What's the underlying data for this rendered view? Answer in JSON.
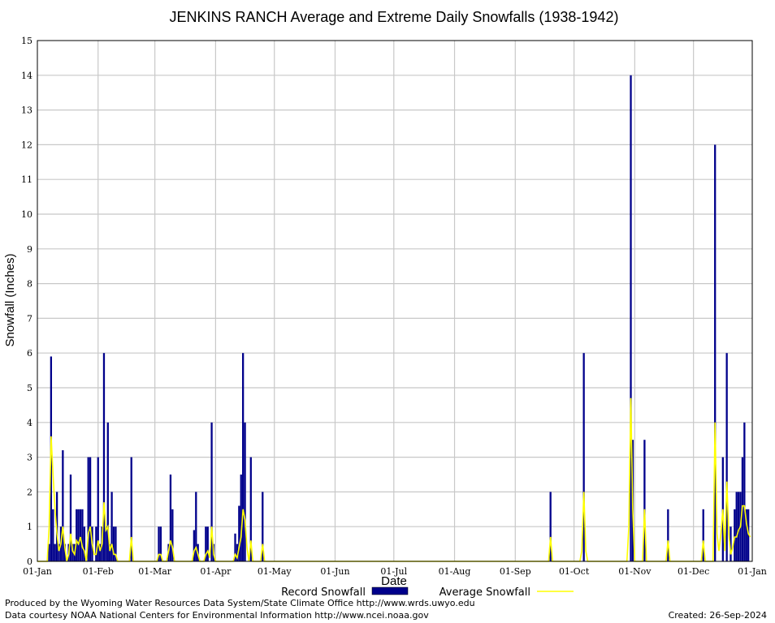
{
  "chart_data": {
    "type": "bar",
    "title": "JENKINS RANCH Average and Extreme Daily Snowfalls (1938-1942)",
    "xlabel": "Date",
    "ylabel": "Snowfall (Inches)",
    "ylim": [
      0,
      15
    ],
    "yticks": [
      0,
      1,
      2,
      3,
      4,
      5,
      6,
      7,
      8,
      9,
      10,
      11,
      12,
      13,
      14,
      15
    ],
    "xlim_day_of_year": [
      1,
      366
    ],
    "xticks": [
      {
        "label": "01-Jan",
        "day": 1
      },
      {
        "label": "01-Feb",
        "day": 32
      },
      {
        "label": "01-Mar",
        "day": 61
      },
      {
        "label": "01-Apr",
        "day": 92
      },
      {
        "label": "01-May",
        "day": 122
      },
      {
        "label": "01-Jun",
        "day": 153
      },
      {
        "label": "01-Jul",
        "day": 183
      },
      {
        "label": "01-Aug",
        "day": 214
      },
      {
        "label": "01-Sep",
        "day": 245
      },
      {
        "label": "01-Oct",
        "day": 275
      },
      {
        "label": "01-Nov",
        "day": 306
      },
      {
        "label": "01-Dec",
        "day": 336
      },
      {
        "label": "01-Jan",
        "day": 366
      }
    ],
    "grid": true,
    "legend_position": "bottom",
    "series": [
      {
        "name": "Record Snowfall",
        "style": "bars",
        "color": "#00008b",
        "points": [
          [
            7,
            0.5
          ],
          [
            8,
            5.9
          ],
          [
            9,
            1.5
          ],
          [
            10,
            0.5
          ],
          [
            11,
            2.0
          ],
          [
            12,
            0.5
          ],
          [
            13,
            1.0
          ],
          [
            14,
            3.2
          ],
          [
            15,
            0.5
          ],
          [
            17,
            0.5
          ],
          [
            18,
            2.5
          ],
          [
            19,
            0.5
          ],
          [
            20,
            0.5
          ],
          [
            21,
            1.5
          ],
          [
            22,
            1.5
          ],
          [
            23,
            1.5
          ],
          [
            24,
            1.5
          ],
          [
            25,
            1.0
          ],
          [
            27,
            3.0
          ],
          [
            28,
            3.0
          ],
          [
            29,
            1.0
          ],
          [
            31,
            1.0
          ],
          [
            32,
            3.0
          ],
          [
            33,
            0.5
          ],
          [
            34,
            1.0
          ],
          [
            35,
            6.0
          ],
          [
            36,
            1.0
          ],
          [
            37,
            4.0
          ],
          [
            38,
            0.5
          ],
          [
            39,
            2.0
          ],
          [
            40,
            1.0
          ],
          [
            41,
            1.0
          ],
          [
            49,
            3.0
          ],
          [
            63,
            1.0
          ],
          [
            64,
            1.0
          ],
          [
            68,
            0.5
          ],
          [
            69,
            2.5
          ],
          [
            70,
            1.5
          ],
          [
            81,
            0.9
          ],
          [
            82,
            2.0
          ],
          [
            83,
            0.5
          ],
          [
            87,
            1.0
          ],
          [
            88,
            1.0
          ],
          [
            90,
            4.0
          ],
          [
            91,
            0.5
          ],
          [
            102,
            0.8
          ],
          [
            103,
            0.5
          ],
          [
            104,
            1.6
          ],
          [
            105,
            2.5
          ],
          [
            106,
            6.0
          ],
          [
            107,
            4.0
          ],
          [
            110,
            3.0
          ],
          [
            116,
            2.0
          ],
          [
            263,
            2.0
          ],
          [
            280,
            6.0
          ],
          [
            304,
            14.0
          ],
          [
            305,
            3.5
          ],
          [
            311,
            3.5
          ],
          [
            323,
            1.5
          ],
          [
            341,
            1.5
          ],
          [
            347,
            12.0
          ],
          [
            351,
            3.0
          ],
          [
            353,
            6.0
          ],
          [
            355,
            1.0
          ],
          [
            357,
            1.5
          ],
          [
            358,
            2.0
          ],
          [
            359,
            2.0
          ],
          [
            360,
            2.0
          ],
          [
            361,
            3.0
          ],
          [
            362,
            4.0
          ],
          [
            363,
            1.5
          ],
          [
            364,
            1.5
          ]
        ]
      },
      {
        "name": "Average Snowfall",
        "style": "line",
        "color": "#ffff00",
        "points": [
          [
            1,
            0
          ],
          [
            6,
            0
          ],
          [
            7,
            1.0
          ],
          [
            8,
            3.6
          ],
          [
            9,
            2.5
          ],
          [
            10,
            1.5
          ],
          [
            11,
            0.8
          ],
          [
            12,
            0.3
          ],
          [
            13,
            0.5
          ],
          [
            14,
            1.0
          ],
          [
            15,
            0.4
          ],
          [
            16,
            0
          ],
          [
            17,
            0.2
          ],
          [
            18,
            0.8
          ],
          [
            19,
            0.3
          ],
          [
            20,
            0.2
          ],
          [
            21,
            0.6
          ],
          [
            22,
            0.5
          ],
          [
            23,
            0.7
          ],
          [
            24,
            0.4
          ],
          [
            25,
            0.3
          ],
          [
            26,
            0
          ],
          [
            27,
            0.8
          ],
          [
            28,
            1.0
          ],
          [
            29,
            0.5
          ],
          [
            30,
            0.2
          ],
          [
            31,
            0.2
          ],
          [
            32,
            0.6
          ],
          [
            33,
            0.3
          ],
          [
            34,
            0.5
          ],
          [
            35,
            1.7
          ],
          [
            36,
            0.9
          ],
          [
            37,
            1.0
          ],
          [
            38,
            0.3
          ],
          [
            39,
            0.5
          ],
          [
            40,
            0.2
          ],
          [
            41,
            0.2
          ],
          [
            42,
            0
          ],
          [
            48,
            0
          ],
          [
            49,
            0.7
          ],
          [
            50,
            0
          ],
          [
            62,
            0
          ],
          [
            63,
            0.2
          ],
          [
            64,
            0.2
          ],
          [
            65,
            0
          ],
          [
            67,
            0
          ],
          [
            68,
            0.3
          ],
          [
            69,
            0.6
          ],
          [
            70,
            0.4
          ],
          [
            71,
            0
          ],
          [
            80,
            0
          ],
          [
            81,
            0.3
          ],
          [
            82,
            0.4
          ],
          [
            83,
            0.2
          ],
          [
            84,
            0
          ],
          [
            86,
            0
          ],
          [
            87,
            0.2
          ],
          [
            88,
            0.3
          ],
          [
            89,
            0.1
          ],
          [
            90,
            1.0
          ],
          [
            91,
            0.2
          ],
          [
            92,
            0
          ],
          [
            101,
            0
          ],
          [
            102,
            0.2
          ],
          [
            103,
            0.1
          ],
          [
            104,
            0.4
          ],
          [
            105,
            0.7
          ],
          [
            106,
            1.5
          ],
          [
            107,
            1.2
          ],
          [
            108,
            0.4
          ],
          [
            109,
            0
          ],
          [
            110,
            0.6
          ],
          [
            111,
            0
          ],
          [
            115,
            0
          ],
          [
            116,
            0.5
          ],
          [
            117,
            0
          ],
          [
            262,
            0
          ],
          [
            263,
            0.7
          ],
          [
            264,
            0
          ],
          [
            278,
            0
          ],
          [
            279,
            0.3
          ],
          [
            280,
            2.0
          ],
          [
            281,
            0.3
          ],
          [
            282,
            0
          ],
          [
            302,
            0
          ],
          [
            303,
            1.0
          ],
          [
            304,
            4.7
          ],
          [
            305,
            1.5
          ],
          [
            306,
            0
          ],
          [
            310,
            0
          ],
          [
            311,
            1.5
          ],
          [
            312,
            0
          ],
          [
            322,
            0
          ],
          [
            323,
            0.6
          ],
          [
            324,
            0
          ],
          [
            340,
            0
          ],
          [
            341,
            0.6
          ],
          [
            342,
            0
          ],
          [
            346,
            0
          ],
          [
            347,
            4.0
          ],
          [
            348,
            0.8
          ],
          [
            349,
            0.3
          ],
          [
            350,
            0.8
          ],
          [
            351,
            1.5
          ],
          [
            352,
            0.3
          ],
          [
            353,
            2.3
          ],
          [
            354,
            0.8
          ],
          [
            355,
            0.2
          ],
          [
            356,
            0.4
          ],
          [
            357,
            0.7
          ],
          [
            358,
            0.7
          ],
          [
            359,
            0.9
          ],
          [
            360,
            1.0
          ],
          [
            361,
            1.6
          ],
          [
            362,
            1.6
          ],
          [
            363,
            1.1
          ],
          [
            364,
            0.8
          ],
          [
            365,
            0.7
          ]
        ]
      }
    ]
  },
  "footer": {
    "credit_line_1": "Produced by the Wyoming Water Resources Data System/State Climate Office http://www.wrds.uwyo.edu",
    "credit_line_2": "Data courtesy NOAA National Centers for Environmental Information http://www.ncei.noaa.gov",
    "created": "Created:  26-Sep-2024"
  }
}
